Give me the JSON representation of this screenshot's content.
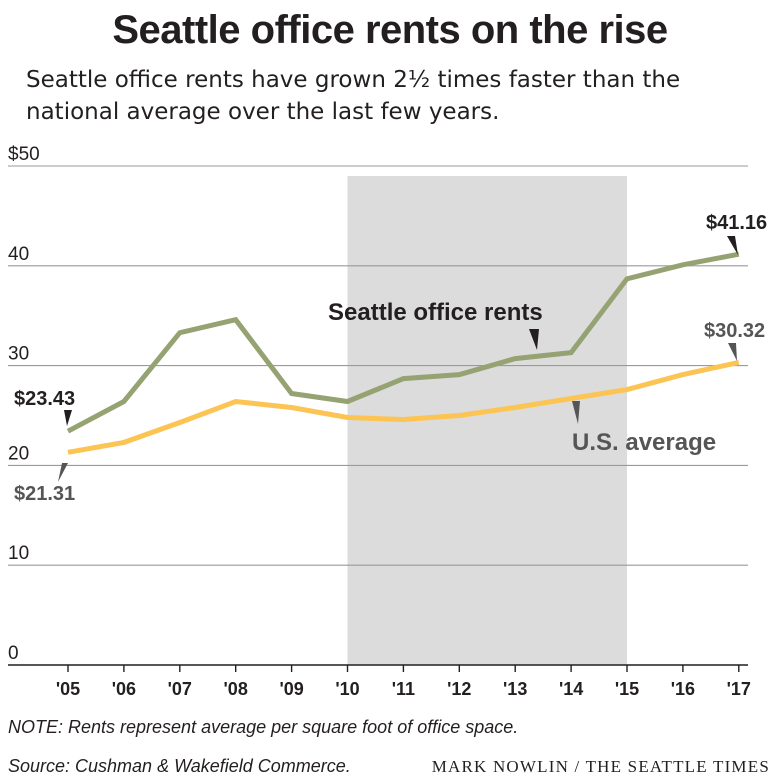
{
  "title": "Seattle office rents on the rise",
  "subtitle": "Seattle office rents have grown 2½ times faster than the national average over the last few years.",
  "note": "NOTE: Rents represent average per square foot of office space.",
  "source": "Source: Cushman & Wakefield Commerce.",
  "credit": "MARK NOWLIN / THE SEATTLE TIMES",
  "chart_data": {
    "type": "line",
    "categories": [
      "'05",
      "'06",
      "'07",
      "'08",
      "'09",
      "'10",
      "'11",
      "'12",
      "'13",
      "'14",
      "'15",
      "'16",
      "'17"
    ],
    "ylim": [
      0,
      50
    ],
    "yticks": [
      0,
      10,
      20,
      30,
      40,
      50
    ],
    "ytick_labels": [
      "0",
      "10",
      "20",
      "30",
      "40",
      "$50"
    ],
    "grid": true,
    "shaded_range": [
      "'10",
      "'15"
    ],
    "series": [
      {
        "name": "Seattle office rents",
        "color": "#95a272",
        "values": [
          23.43,
          26.4,
          33.3,
          34.6,
          27.2,
          26.4,
          28.7,
          29.1,
          30.7,
          31.3,
          38.7,
          40.1,
          41.16
        ],
        "start_label": "$23.43",
        "end_label": "$41.16"
      },
      {
        "name": "U.S. average",
        "color": "#fcc453",
        "values": [
          21.31,
          22.3,
          24.3,
          26.4,
          25.8,
          24.8,
          24.6,
          25.0,
          25.8,
          26.7,
          27.6,
          29.1,
          30.32
        ],
        "start_label": "$21.31",
        "end_label": "$30.32"
      }
    ]
  }
}
